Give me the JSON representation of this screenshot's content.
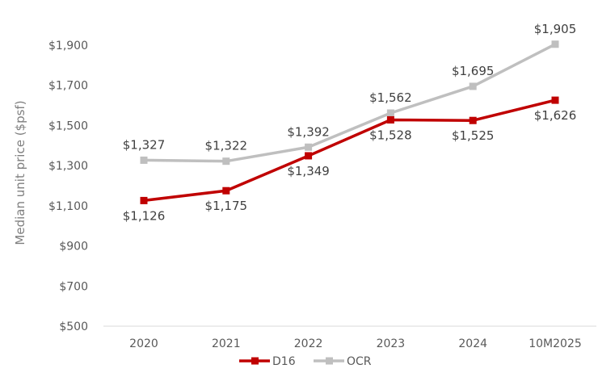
{
  "chart_data": {
    "type": "line",
    "categories": [
      "2020",
      "2021",
      "2022",
      "2023",
      "2024",
      "10M2025"
    ],
    "ylabel": "Median unit price ($psf)",
    "xlabel": "",
    "ylim": [
      500,
      1900
    ],
    "yticks": [
      500,
      700,
      900,
      1100,
      1300,
      1500,
      1700,
      1900
    ],
    "ytick_labels": [
      "$500",
      "$700",
      "$900",
      "$1,100",
      "$1,300",
      "$1,500",
      "$1,700",
      "$1,900"
    ],
    "grid": false,
    "legend_position": "bottom-center",
    "series": [
      {
        "name": "D16",
        "color": "#C00000",
        "values": [
          1126,
          1175,
          1349,
          1528,
          1525,
          1626
        ],
        "labels": [
          "$1,126",
          "$1,175",
          "$1,349",
          "$1,528",
          "$1,525",
          "$1,626"
        ]
      },
      {
        "name": "OCR",
        "color": "#BFBFBF",
        "values": [
          1327,
          1322,
          1392,
          1562,
          1695,
          1905
        ],
        "labels": [
          "$1,327",
          "$1,322",
          "$1,392",
          "$1,562",
          "$1,695",
          "$1,905"
        ]
      }
    ]
  }
}
